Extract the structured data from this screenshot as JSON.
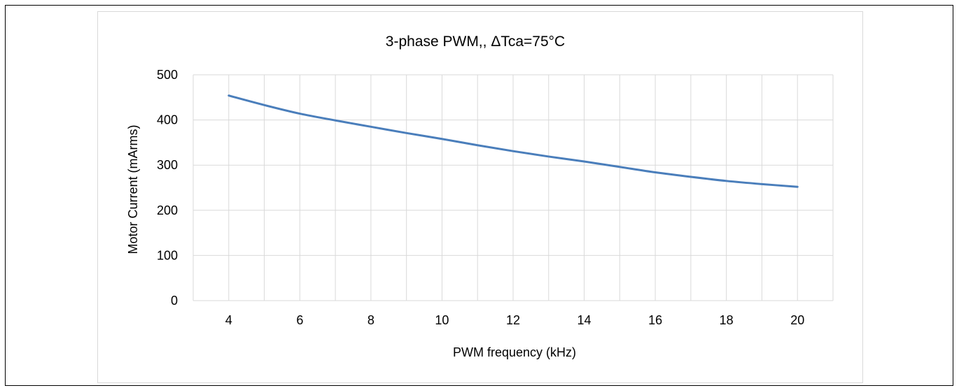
{
  "chart_data": {
    "type": "line",
    "title": "3-phase PWM,, ΔTca=75°C",
    "xlabel": "PWM frequency (kHz)",
    "ylabel": "Motor Current (mArms)",
    "xlim": [
      3,
      21
    ],
    "ylim": [
      0,
      500
    ],
    "x_ticks": [
      4,
      6,
      8,
      10,
      12,
      14,
      16,
      18,
      20
    ],
    "y_ticks": [
      0,
      100,
      200,
      300,
      400,
      500
    ],
    "x_tick_labels": [
      "4",
      "6",
      "8",
      "10",
      "12",
      "14",
      "16",
      "18",
      "20"
    ],
    "y_tick_labels": [
      "0",
      "100",
      "200",
      "300",
      "400",
      "500"
    ],
    "grid": true,
    "legend": false,
    "series": [
      {
        "color": "#4a7ebb",
        "x": [
          4,
          5,
          6,
          7,
          8,
          9,
          10,
          11,
          12,
          13,
          14,
          15,
          16,
          17,
          18,
          19,
          20
        ],
        "y": [
          454,
          433,
          414,
          399,
          385,
          371,
          358,
          344,
          331,
          319,
          308,
          296,
          284,
          274,
          265,
          258,
          252
        ]
      }
    ],
    "grid_color": "#d9d9d9"
  }
}
